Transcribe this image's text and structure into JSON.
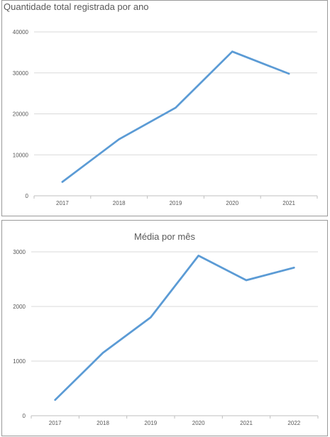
{
  "chart_data": [
    {
      "type": "line",
      "title": "Quantidade total registrada por ano",
      "xlabel": "",
      "ylabel": "",
      "categories": [
        "2017",
        "2018",
        "2019",
        "2020",
        "2021"
      ],
      "series": [
        {
          "values": [
            3400,
            13800,
            21500,
            35200,
            29800
          ]
        }
      ],
      "ylim": [
        0,
        40000
      ],
      "yticks": [
        0,
        10000,
        20000,
        30000,
        40000
      ],
      "grid": true,
      "legend": "none",
      "line_color": "#5b9bd5"
    },
    {
      "type": "line",
      "title": "Média por mês",
      "xlabel": "",
      "ylabel": "",
      "categories": [
        "2017",
        "2018",
        "2019",
        "2020",
        "2021",
        "2022"
      ],
      "series": [
        {
          "values": [
            290,
            1150,
            1800,
            2930,
            2480,
            2710
          ]
        }
      ],
      "ylim": [
        0,
        3000
      ],
      "yticks": [
        0,
        1000,
        2000,
        3000
      ],
      "grid": true,
      "legend": "none",
      "line_color": "#5b9bd5"
    }
  ]
}
